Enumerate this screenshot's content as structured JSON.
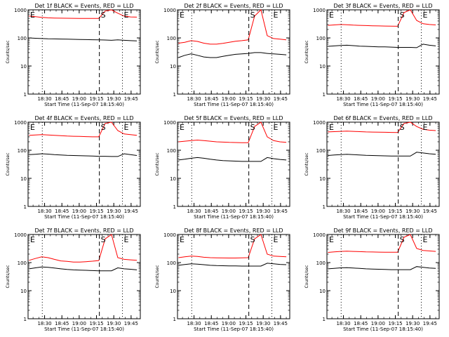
{
  "chart_data": [
    {
      "type": "line",
      "title": "Det 1f BLACK = Events, RED = LLD",
      "xlabel": "Start Time (11-Sep-07 18:15:40)",
      "ylabel": "Counts/sec",
      "yscale": "log",
      "ylim": [
        1,
        1000
      ],
      "y_ticks": [
        "1",
        "10",
        "100",
        "1000"
      ],
      "x_ticks": [
        "18:30",
        "18:45",
        "19:00",
        "19:15",
        "19:30",
        "19:45"
      ],
      "markers": [
        {
          "label": "E",
          "style": "dotted"
        },
        {
          "label": "S",
          "style": "dashed"
        },
        {
          "label": "E",
          "style": "dotted"
        }
      ],
      "series": [
        {
          "name": "Events",
          "color": "#000000",
          "values": [
            100,
            97,
            95,
            93,
            92,
            91,
            90,
            89,
            88,
            87,
            86,
            85,
            84,
            82,
            85,
            82,
            80,
            78
          ]
        },
        {
          "name": "LLD",
          "color": "#ff0000",
          "values": [
            600,
            570,
            540,
            520,
            510,
            505,
            500,
            498,
            496,
            495,
            494,
            495,
            900,
            1000,
            760,
            600,
            560,
            550
          ]
        }
      ]
    },
    {
      "type": "line",
      "title": "Det 2f BLACK = Events, RED = LLD",
      "xlabel": "Start Time (11-Sep-07 18:15:40)",
      "ylabel": "Counts/sec",
      "yscale": "log",
      "ylim": [
        1,
        1000
      ],
      "y_ticks": [
        "1",
        "10",
        "100",
        "1000"
      ],
      "x_ticks": [
        "18:30",
        "18:45",
        "19:00",
        "19:15",
        "19:30",
        "19:45"
      ],
      "markers": [
        {
          "label": "E",
          "style": "dotted"
        },
        {
          "label": "S",
          "style": "dashed"
        },
        {
          "label": "E",
          "style": "dotted"
        }
      ],
      "series": [
        {
          "name": "Events",
          "color": "#000000",
          "values": [
            20,
            24,
            27,
            24,
            21,
            20,
            20,
            22,
            24,
            26,
            27,
            28,
            30,
            30,
            28,
            27,
            26,
            25
          ]
        },
        {
          "name": "LLD",
          "color": "#ff0000",
          "values": [
            65,
            70,
            80,
            75,
            65,
            60,
            60,
            64,
            70,
            76,
            80,
            85,
            600,
            1000,
            120,
            95,
            90,
            85
          ]
        }
      ]
    },
    {
      "type": "line",
      "title": "Det 3f BLACK = Events, RED = LLD",
      "xlabel": "Start Time (11-Sep-07 18:15:40)",
      "ylabel": "Counts/sec",
      "yscale": "log",
      "ylim": [
        1,
        1000
      ],
      "y_ticks": [
        "1",
        "10",
        "100",
        "1000"
      ],
      "x_ticks": [
        "18:30",
        "18:45",
        "19:00",
        "19:15",
        "19:30",
        "19:45"
      ],
      "markers": [
        {
          "label": "E",
          "style": "dotted"
        },
        {
          "label": "S",
          "style": "dashed"
        },
        {
          "label": "E",
          "style": "dotted"
        }
      ],
      "series": [
        {
          "name": "Events",
          "color": "#000000",
          "values": [
            50,
            52,
            54,
            55,
            53,
            51,
            50,
            49,
            48,
            48,
            47,
            46,
            46,
            46,
            45,
            60,
            55,
            52
          ]
        },
        {
          "name": "LLD",
          "color": "#ff0000",
          "values": [
            280,
            290,
            300,
            295,
            285,
            280,
            275,
            270,
            268,
            265,
            262,
            260,
            800,
            1000,
            420,
            320,
            300,
            290
          ]
        }
      ]
    },
    {
      "type": "line",
      "title": "Det 4f BLACK = Events, RED = LLD",
      "xlabel": "Start Time (11-Sep-07 18:15:40)",
      "ylabel": "Counts/sec",
      "yscale": "log",
      "ylim": [
        1,
        1000
      ],
      "y_ticks": [
        "1",
        "10",
        "100",
        "1000"
      ],
      "x_ticks": [
        "18:30",
        "18:45",
        "19:00",
        "19:15",
        "19:30",
        "19:45"
      ],
      "markers": [
        {
          "label": "E",
          "style": "dotted"
        },
        {
          "label": "S",
          "style": "dashed"
        },
        {
          "label": "E",
          "style": "dotted"
        }
      ],
      "series": [
        {
          "name": "Events",
          "color": "#000000",
          "values": [
            70,
            72,
            75,
            73,
            70,
            68,
            66,
            65,
            64,
            63,
            62,
            61,
            61,
            60,
            60,
            75,
            70,
            65
          ]
        },
        {
          "name": "LLD",
          "color": "#ff0000",
          "values": [
            340,
            350,
            360,
            350,
            340,
            330,
            320,
            315,
            310,
            305,
            300,
            300,
            900,
            1000,
            500,
            380,
            360,
            340
          ]
        }
      ]
    },
    {
      "type": "line",
      "title": "Det 5f BLACK = Events, RED = LLD",
      "xlabel": "Start Time (11-Sep-07 18:15:40)",
      "ylabel": "Counts/sec",
      "yscale": "log",
      "ylim": [
        1,
        1000
      ],
      "y_ticks": [
        "1",
        "10",
        "100",
        "1000"
      ],
      "x_ticks": [
        "18:30",
        "18:45",
        "19:00",
        "19:15",
        "19:30",
        "19:45"
      ],
      "markers": [
        {
          "label": "E",
          "style": "dotted"
        },
        {
          "label": "S",
          "style": "dashed"
        },
        {
          "label": "E",
          "style": "dotted"
        }
      ],
      "series": [
        {
          "name": "Events",
          "color": "#000000",
          "values": [
            45,
            48,
            52,
            55,
            52,
            48,
            45,
            43,
            42,
            41,
            40,
            40,
            40,
            40,
            55,
            50,
            47,
            45
          ]
        },
        {
          "name": "LLD",
          "color": "#ff0000",
          "values": [
            200,
            210,
            220,
            230,
            220,
            210,
            200,
            195,
            190,
            188,
            186,
            185,
            700,
            1000,
            300,
            220,
            200,
            190
          ]
        }
      ]
    },
    {
      "type": "line",
      "title": "Det 6f BLACK = Events, RED = LLD",
      "xlabel": "Start Time (11-Sep-07 18:15:40)",
      "ylabel": "Counts/sec",
      "yscale": "log",
      "ylim": [
        1,
        1000
      ],
      "y_ticks": [
        "1",
        "10",
        "100",
        "1000"
      ],
      "x_ticks": [
        "18:30",
        "18:45",
        "19:00",
        "19:15",
        "19:30",
        "19:45"
      ],
      "markers": [
        {
          "label": "E",
          "style": "dotted"
        },
        {
          "label": "S",
          "style": "dashed"
        },
        {
          "label": "E",
          "style": "dotted"
        }
      ],
      "series": [
        {
          "name": "Events",
          "color": "#000000",
          "values": [
            65,
            68,
            70,
            72,
            70,
            68,
            66,
            65,
            64,
            63,
            62,
            62,
            62,
            62,
            85,
            80,
            75,
            72
          ]
        },
        {
          "name": "LLD",
          "color": "#ff0000",
          "values": [
            450,
            460,
            470,
            480,
            470,
            460,
            450,
            445,
            440,
            436,
            432,
            430,
            900,
            1000,
            700,
            560,
            520,
            500
          ]
        }
      ]
    },
    {
      "type": "line",
      "title": "Det 7f BLACK = Events, RED = LLD",
      "xlabel": "Start Time (11-Sep-07 18:15:40)",
      "ylabel": "Counts/sec",
      "yscale": "log",
      "ylim": [
        1,
        1000
      ],
      "y_ticks": [
        "1",
        "10",
        "100",
        "1000"
      ],
      "x_ticks": [
        "18:30",
        "18:45",
        "19:00",
        "19:15",
        "19:30",
        "19:45"
      ],
      "markers": [
        {
          "label": "E",
          "style": "dotted"
        },
        {
          "label": "S",
          "style": "dashed"
        },
        {
          "label": "E",
          "style": "dotted"
        }
      ],
      "series": [
        {
          "name": "Events",
          "color": "#000000",
          "values": [
            60,
            65,
            70,
            68,
            64,
            60,
            57,
            55,
            54,
            53,
            52,
            51,
            51,
            51,
            65,
            60,
            58,
            55
          ]
        },
        {
          "name": "LLD",
          "color": "#ff0000",
          "values": [
            120,
            140,
            160,
            150,
            130,
            115,
            110,
            105,
            105,
            108,
            112,
            118,
            700,
            1000,
            150,
            130,
            125,
            120
          ]
        }
      ]
    },
    {
      "type": "line",
      "title": "Det 8f BLACK = Events, RED = LLD",
      "xlabel": "Start Time (11-Sep-07 18:15:40)",
      "ylabel": "Counts/sec",
      "yscale": "log",
      "ylim": [
        1,
        1000
      ],
      "y_ticks": [
        "1",
        "10",
        "100",
        "1000"
      ],
      "x_ticks": [
        "18:30",
        "18:45",
        "19:00",
        "19:15",
        "19:30",
        "19:45"
      ],
      "markers": [
        {
          "label": "E",
          "style": "dotted"
        },
        {
          "label": "S",
          "style": "dashed"
        },
        {
          "label": "E",
          "style": "dotted"
        }
      ],
      "series": [
        {
          "name": "Events",
          "color": "#000000",
          "values": [
            80,
            85,
            90,
            88,
            84,
            80,
            78,
            77,
            76,
            76,
            75,
            75,
            75,
            75,
            95,
            90,
            86,
            84
          ]
        },
        {
          "name": "LLD",
          "color": "#ff0000",
          "values": [
            150,
            160,
            170,
            165,
            155,
            150,
            148,
            146,
            145,
            145,
            148,
            150,
            700,
            1000,
            200,
            170,
            165,
            160
          ]
        }
      ]
    },
    {
      "type": "line",
      "title": "Det 9f BLACK = Events, RED = LLD",
      "xlabel": "Start Time (11-Sep-07 18:15:40)",
      "ylabel": "Counts/sec",
      "yscale": "log",
      "ylim": [
        1,
        1000
      ],
      "y_ticks": [
        "1",
        "10",
        "100",
        "1000"
      ],
      "x_ticks": [
        "18:30",
        "18:45",
        "19:00",
        "19:15",
        "19:30",
        "19:45"
      ],
      "markers": [
        {
          "label": "E",
          "style": "dotted"
        },
        {
          "label": "S",
          "style": "dashed"
        },
        {
          "label": "E",
          "style": "dotted"
        }
      ],
      "series": [
        {
          "name": "Events",
          "color": "#000000",
          "values": [
            60,
            62,
            65,
            66,
            64,
            62,
            60,
            59,
            58,
            57,
            56,
            56,
            56,
            56,
            72,
            68,
            64,
            62
          ]
        },
        {
          "name": "LLD",
          "color": "#ff0000",
          "values": [
            230,
            240,
            250,
            255,
            250,
            245,
            240,
            238,
            236,
            235,
            234,
            235,
            800,
            1000,
            320,
            270,
            260,
            250
          ]
        }
      ]
    }
  ]
}
